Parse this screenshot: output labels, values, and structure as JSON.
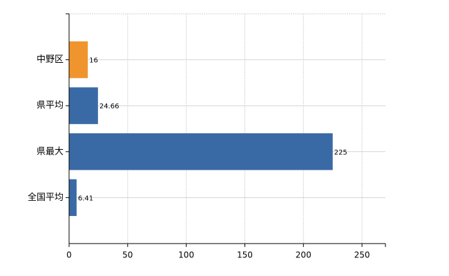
{
  "chart_data": {
    "type": "bar",
    "orientation": "horizontal",
    "categories": [
      "中野区",
      "県平均",
      "県最大",
      "全国平均"
    ],
    "values": [
      16,
      24.66,
      225,
      6.41
    ],
    "colors": [
      "#f0952e",
      "#3a6aa6",
      "#3a6aa6",
      "#3a6aa6"
    ],
    "xlim": [
      0,
      270
    ],
    "xticks": [
      0,
      50,
      100,
      150,
      200,
      250
    ],
    "grid": true
  }
}
